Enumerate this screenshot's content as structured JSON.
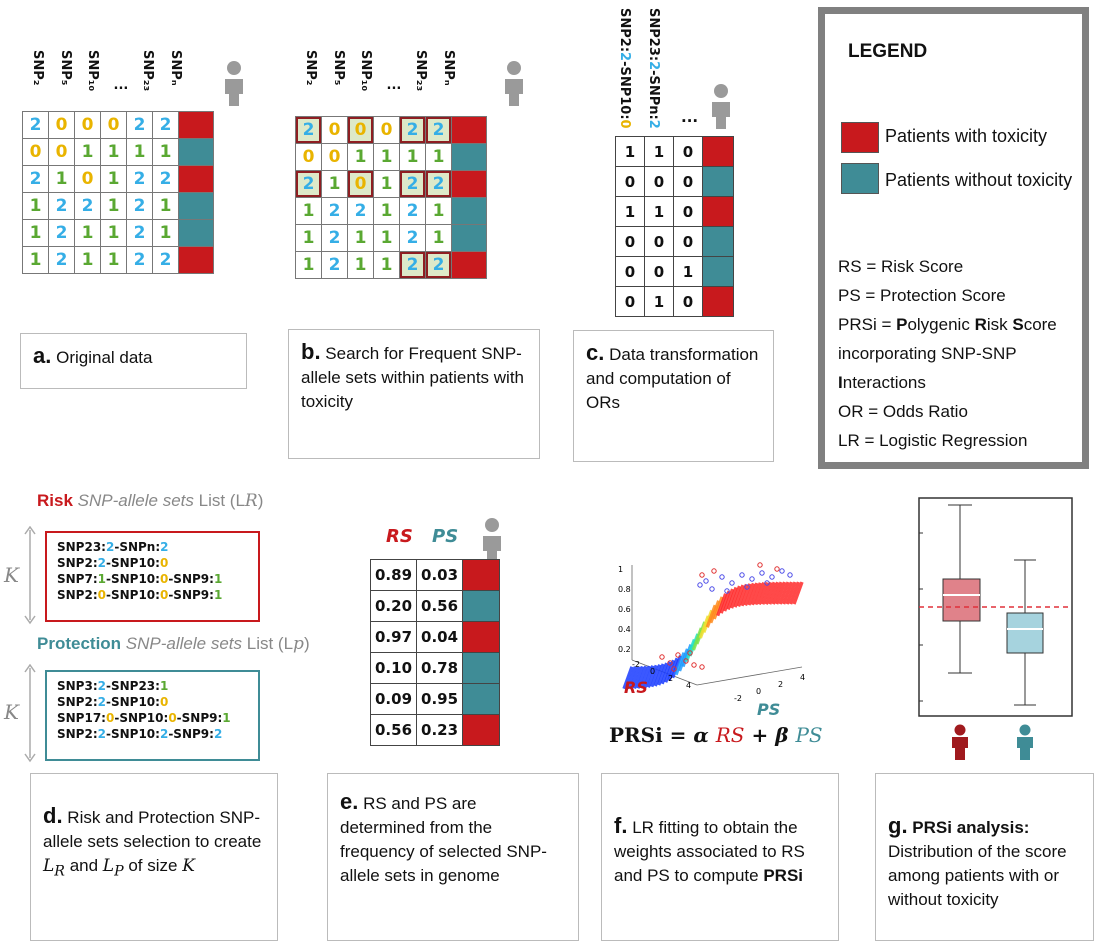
{
  "colors": {
    "toxicity": "#c8191d",
    "no_toxicity": "#3f8c96",
    "allele0": "#e9b400",
    "allele1": "#5aa832",
    "allele2": "#35aee6",
    "highlight": "#8e1e22"
  },
  "panel_a": {
    "headers": [
      "SNP₂",
      "SNP₅",
      "SNP₁₀",
      "...",
      "SNP₂₃",
      "SNPₙ"
    ],
    "rows": [
      {
        "v": [
          "2",
          "0",
          "0",
          "0",
          "2",
          "2"
        ],
        "tox": true
      },
      {
        "v": [
          "0",
          "0",
          "1",
          "1",
          "1",
          "1"
        ],
        "tox": false
      },
      {
        "v": [
          "2",
          "1",
          "0",
          "1",
          "2",
          "2"
        ],
        "tox": true
      },
      {
        "v": [
          "1",
          "2",
          "2",
          "1",
          "2",
          "1"
        ],
        "tox": false
      },
      {
        "v": [
          "1",
          "2",
          "1",
          "1",
          "2",
          "1"
        ],
        "tox": false
      },
      {
        "v": [
          "1",
          "2",
          "1",
          "1",
          "2",
          "2"
        ],
        "tox": true
      }
    ],
    "caption_letter": "a.",
    "caption_text": "Original data"
  },
  "panel_b": {
    "headers": [
      "SNP₂",
      "SNP₅",
      "SNP₁₀",
      "...",
      "SNP₂₃",
      "SNPₙ"
    ],
    "caption_letter": "b.",
    "caption_text": "Search for Frequent SNP-allele sets within patients with toxicity"
  },
  "panel_c": {
    "headers": [
      "SNP2:2-SNP10:0",
      "SNP23:2-SNPn:2",
      "..."
    ],
    "rows": [
      [
        "1",
        "1",
        "0"
      ],
      [
        "0",
        "0",
        "0"
      ],
      [
        "1",
        "1",
        "0"
      ],
      [
        "0",
        "0",
        "0"
      ],
      [
        "0",
        "0",
        "1"
      ],
      [
        "0",
        "1",
        "0"
      ]
    ],
    "tox": [
      true,
      false,
      true,
      false,
      false,
      true
    ],
    "caption_letter": "c.",
    "caption_text": "Data transformation and computation of ORs"
  },
  "legend": {
    "title": "LEGEND",
    "tox_label": "Patients with toxicity",
    "ntox_label": "Patients without toxicity",
    "defs": [
      "RS = Risk Score",
      "PS = Protection Score"
    ],
    "prsi": [
      "PRSi = ",
      "P",
      "olygenic ",
      "R",
      "isk ",
      "S",
      "core incorporating SNP-SNP ",
      "I",
      "nteractions"
    ],
    "defs2": [
      "OR = Odds Ratio",
      "LR = Logistic Regression"
    ]
  },
  "panel_d": {
    "risk_title": "Risk",
    "risk_sub": "SNP-allele sets",
    "risk_list": "List (L",
    "risk_sub_r": "R",
    "risk_items": [
      [
        [
          "SNP23:",
          ""
        ],
        [
          "2",
          "a2"
        ],
        [
          "-SNPn:",
          ""
        ],
        [
          "2",
          "a2"
        ]
      ],
      [
        [
          "SNP2:",
          ""
        ],
        [
          "2",
          "a2"
        ],
        [
          "-SNP10:",
          ""
        ],
        [
          "0",
          "a0"
        ]
      ],
      [
        [
          "SNP7:",
          ""
        ],
        [
          "1",
          "a1"
        ],
        [
          "-SNP10:",
          ""
        ],
        [
          "0",
          "a0"
        ],
        [
          "-SNP9:",
          ""
        ],
        [
          "1",
          "a1"
        ]
      ],
      [
        [
          "SNP2:",
          ""
        ],
        [
          "0",
          "a0"
        ],
        [
          "-SNP10:",
          ""
        ],
        [
          "0",
          "a0"
        ],
        [
          "-SNP9:",
          ""
        ],
        [
          "1",
          "a1"
        ]
      ]
    ],
    "prot_title": "Protection",
    "prot_sub": "SNP-allele sets",
    "prot_list": "List (L",
    "prot_sub_p": "p",
    "prot_items": [
      [
        [
          "SNP3:",
          ""
        ],
        [
          "2",
          "a2"
        ],
        [
          "-SNP23:",
          ""
        ],
        [
          "1",
          "a1"
        ]
      ],
      [
        [
          "SNP2:",
          ""
        ],
        [
          "2",
          "a2"
        ],
        [
          "-SNP10:",
          ""
        ],
        [
          "0",
          "a0"
        ]
      ],
      [
        [
          "SNP17:",
          ""
        ],
        [
          "0",
          "a0"
        ],
        [
          "-SNP10:",
          ""
        ],
        [
          "0",
          "a0"
        ],
        [
          "-SNP9:",
          ""
        ],
        [
          "1",
          "a1"
        ]
      ],
      [
        [
          "SNP2:",
          ""
        ],
        [
          "2",
          "a2"
        ],
        [
          "-SNP10:",
          ""
        ],
        [
          "2",
          "a2"
        ],
        [
          "-SNP9:",
          ""
        ],
        [
          "2",
          "a2"
        ]
      ]
    ],
    "k": "K",
    "caption_letter": "d.",
    "caption_text": "Risk and Protection SNP-allele sets selection to create L_R and L_P of size K"
  },
  "panel_e": {
    "col_rs": "RS",
    "col_ps": "PS",
    "rows": [
      [
        "0.89",
        "0.03"
      ],
      [
        "0.20",
        "0.56"
      ],
      [
        "0.97",
        "0.04"
      ],
      [
        "0.10",
        "0.78"
      ],
      [
        "0.09",
        "0.95"
      ],
      [
        "0.56",
        "0.23"
      ]
    ],
    "tox": [
      true,
      false,
      true,
      false,
      false,
      true
    ],
    "caption_letter": "e.",
    "caption_text": "RS and PS are determined from the frequency of selected SNP-allele sets in genome"
  },
  "panel_f": {
    "zticks": [
      "1",
      "0.8",
      "0.6",
      "0.4",
      "0.2"
    ],
    "rs_ticks": [
      "-2",
      "0",
      "2",
      "4"
    ],
    "ps_ticks": [
      "-2",
      "0",
      "2",
      "4"
    ],
    "rs_label": "RS",
    "ps_label": "PS",
    "formula": {
      "lhs": "PRSi",
      "eq": " = ",
      "alpha": "α",
      "rs": "RS",
      "plus": " + ",
      "beta": "β",
      "ps": "PS"
    },
    "caption_letter": "f.",
    "caption_text": "LR fitting to obtain the weights associated to RS and PS to compute",
    "caption_bold": "PRSi"
  },
  "panel_g": {
    "caption_letter": "g.",
    "caption_bold": "PRSi analysis:",
    "caption_text": "Distribution of the score among patients with or without toxicity"
  }
}
